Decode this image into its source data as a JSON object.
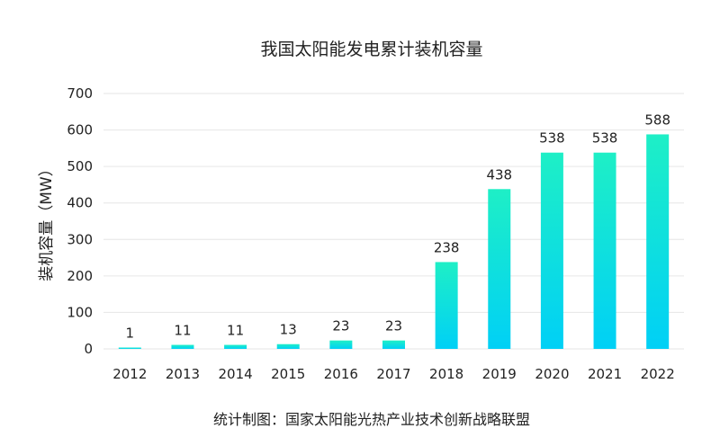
{
  "chart_data": {
    "type": "bar",
    "title": "我国太阳能发电累计装机容量",
    "ylabel": "装机容量（MW）",
    "xlabel": "",
    "categories": [
      "2012",
      "2013",
      "2014",
      "2015",
      "2016",
      "2017",
      "2018",
      "2019",
      "2020",
      "2021",
      "2022"
    ],
    "values": [
      1,
      11,
      11,
      13,
      23,
      23,
      238,
      438,
      538,
      538,
      588
    ],
    "data_labels": [
      "1",
      "11",
      "11",
      "13",
      "23",
      "23",
      "238",
      "438",
      "538",
      "538",
      "588"
    ],
    "ylim": [
      0,
      700
    ],
    "yticks": [
      0,
      100,
      200,
      300,
      400,
      500,
      600,
      700
    ],
    "ytick_labels": [
      "0",
      "100",
      "200",
      "300",
      "400",
      "500",
      "600",
      "700"
    ],
    "grid": true,
    "legend": "none",
    "colors": {
      "bar_bottom": "#00d0f6",
      "bar_top": "#1eefc6",
      "grid": "#e6e6e6"
    }
  },
  "source": "统计制图：国家太阳能光热产业技术创新战略联盟"
}
